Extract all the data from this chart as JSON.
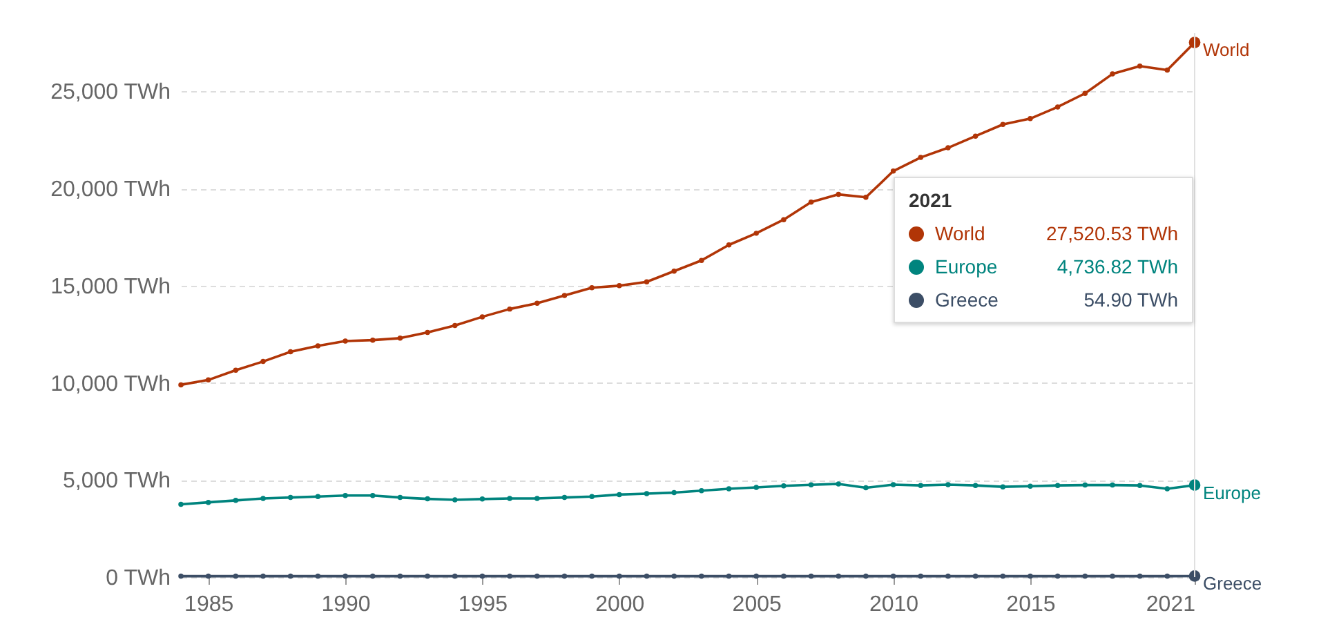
{
  "chart_data": {
    "type": "line",
    "x": [
      1984,
      1985,
      1986,
      1987,
      1988,
      1989,
      1990,
      1991,
      1992,
      1993,
      1994,
      1995,
      1996,
      1997,
      1998,
      1999,
      2000,
      2001,
      2002,
      2003,
      2004,
      2005,
      2006,
      2007,
      2008,
      2009,
      2010,
      2011,
      2012,
      2013,
      2014,
      2015,
      2016,
      2017,
      2018,
      2019,
      2020,
      2021
    ],
    "series": [
      {
        "name": "World",
        "color": "#b13507",
        "values": [
          9900,
          10150,
          10650,
          11100,
          11600,
          11900,
          12150,
          12200,
          12300,
          12600,
          12950,
          13400,
          13800,
          14100,
          14500,
          14900,
          15000,
          15200,
          15750,
          16300,
          17100,
          17700,
          18400,
          19300,
          19700,
          19550,
          20900,
          21600,
          22100,
          22700,
          23300,
          23600,
          24200,
          24900,
          25900,
          26300,
          26100,
          27520.53
        ]
      },
      {
        "name": "Europe",
        "color": "#00847e",
        "values": [
          3750,
          3850,
          3950,
          4050,
          4100,
          4150,
          4200,
          4200,
          4100,
          4030,
          3980,
          4020,
          4050,
          4050,
          4100,
          4150,
          4250,
          4300,
          4350,
          4450,
          4550,
          4620,
          4700,
          4750,
          4800,
          4600,
          4760,
          4720,
          4760,
          4720,
          4650,
          4680,
          4720,
          4740,
          4740,
          4720,
          4550,
          4736.82
        ]
      },
      {
        "name": "Greece",
        "color": "#3c4e66",
        "values": [
          50,
          50,
          50,
          50,
          50,
          50,
          50,
          50,
          50,
          50,
          50,
          50,
          50,
          50,
          50,
          50,
          50,
          50,
          50,
          50,
          50,
          50,
          50,
          50,
          50,
          50,
          50,
          50,
          50,
          50,
          50,
          50,
          50,
          50,
          50,
          50,
          50,
          54.9
        ]
      }
    ],
    "xlim": [
      1984,
      2021
    ],
    "xticks": [
      1985,
      1990,
      1995,
      2000,
      2005,
      2010,
      2015,
      2021
    ],
    "ylim": [
      0,
      28000
    ],
    "yticks": [
      {
        "value": 0,
        "label": "0 TWh"
      },
      {
        "value": 5000,
        "label": "5,000 TWh"
      },
      {
        "value": 10000,
        "label": "10,000 TWh"
      },
      {
        "value": 15000,
        "label": "15,000 TWh"
      },
      {
        "value": 20000,
        "label": "20,000 TWh"
      },
      {
        "value": 25000,
        "label": "25,000 TWh"
      }
    ],
    "grid": "y",
    "legend": "right",
    "marker": "circle",
    "line_style": "solid",
    "ref_lines": [
      {
        "axis": "x",
        "value": 2021,
        "color": "#e0e0e0"
      }
    ],
    "annotations": [
      "2021",
      "27,520.53 TWh",
      "4,736.82 TWh",
      "54.90 TWh"
    ]
  }
}
